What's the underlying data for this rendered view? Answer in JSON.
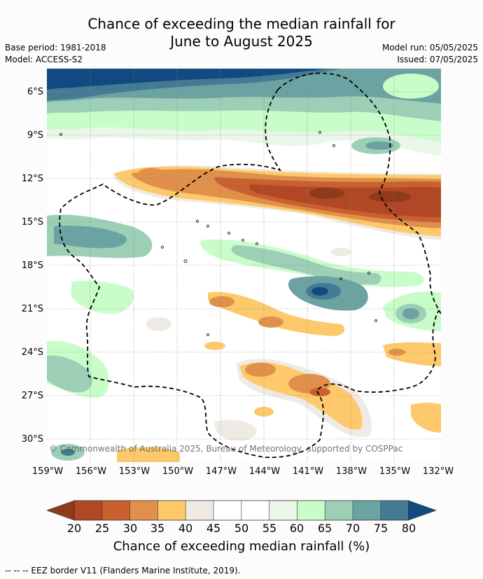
{
  "title_line1": "Chance of exceeding the median rainfall for",
  "title_line2": "June to August 2025",
  "base_period": "Base period: 1981-2018",
  "model": "Model: ACCESS-S2",
  "model_run": "Model run: 05/05/2025",
  "issued": "Issued: 07/05/2025",
  "lat_labels": [
    "6°S",
    "9°S",
    "12°S",
    "15°S",
    "18°S",
    "21°S",
    "24°S",
    "27°S",
    "30°S"
  ],
  "lon_labels": [
    "159°W",
    "156°W",
    "153°W",
    "150°W",
    "147°W",
    "144°W",
    "141°W",
    "138°W",
    "135°W",
    "132°W"
  ],
  "copyright": "© Commonwealth of Australia 2025, Bureau of Meteorology, supported by COSPPac",
  "colorbar": {
    "ticks": [
      "20",
      "25",
      "30",
      "35",
      "40",
      "45",
      "50",
      "55",
      "60",
      "65",
      "70",
      "75",
      "80"
    ],
    "title": "Chance of exceeding median rainfall (%)",
    "colors": {
      "below20": "#8e3a1b",
      "20-25": "#b04826",
      "25-30": "#c9602f",
      "30-35": "#e0904a",
      "35-40": "#fdc96b",
      "40-45": "#efebe4",
      "45-50": "#ffffff",
      "50-55": "#ffffff",
      "55-60": "#e9f6e8",
      "60-65": "#c8fcc8",
      "65-70": "#9ccfb5",
      "70-75": "#6ba3a3",
      "75-80": "#457a94",
      "above80": "#114a80"
    }
  },
  "footnote": "--  --  -- EEZ border V11 (Flanders Marine Institute, 2019)."
}
